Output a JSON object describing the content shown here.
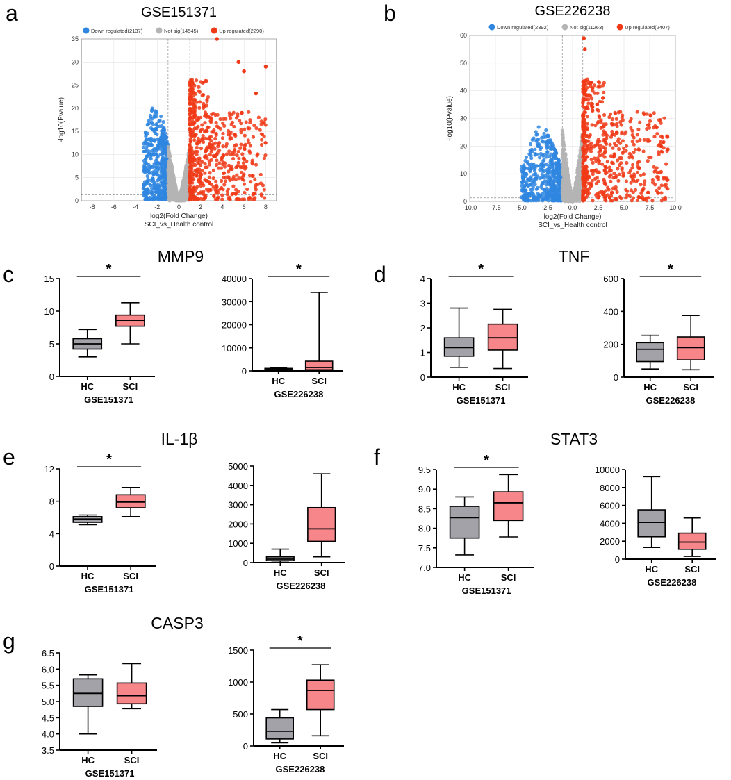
{
  "figure": {
    "panel_letters": [
      "a",
      "b",
      "c",
      "d",
      "e",
      "f",
      "g"
    ],
    "colors": {
      "down": "#2f86e0",
      "notsig": "#b4b4b4",
      "up": "#f03a17",
      "hc_box": "#a2a2a8",
      "sci_box": "#f6868a"
    }
  },
  "volcano_a": {
    "title": "GSE151371",
    "legend": [
      "Down regulated(2137)",
      "Not sig(14545)",
      "Up regulated(2290)"
    ],
    "xlabel": "log2(Fold Change)",
    "subtitle": "SCI_vs_Health control",
    "ylabel": "-log10(Pvalue)",
    "yticks": [
      "0",
      "5",
      "10",
      "15",
      "20",
      "25",
      "30",
      "35"
    ],
    "xticks": [
      "-8",
      "-6",
      "-4",
      "-2",
      "0",
      "2",
      "4",
      "6",
      "8"
    ]
  },
  "volcano_b": {
    "title": "GSE226238",
    "legend": [
      "Down regulated(2392)",
      "Not sig(11263)",
      "Up regulated(2407)"
    ],
    "xlabel": "log2(Fold Change)",
    "subtitle": "SCI_vs_Health control",
    "ylabel": "-log10(Pvalue)",
    "yticks": [
      "0",
      "10",
      "20",
      "30",
      "40",
      "50",
      "60"
    ],
    "xticks": [
      "-10.0",
      "-7.5",
      "-5.0",
      "-2.5",
      "0.0",
      "2.5",
      "5.0",
      "7.5",
      "10.0"
    ]
  },
  "gene_titles": {
    "c": "MMP9",
    "d": "TNF",
    "e": "IL-1β",
    "f": "STAT3",
    "g": "CASP3"
  },
  "chart_data": [
    {
      "id": "a",
      "type": "scatter",
      "title": "GSE151371",
      "xlabel": "log2(Fold Change)",
      "ylabel": "-log10(Pvalue)",
      "xlim": [
        -9,
        9
      ],
      "ylim": [
        0,
        35
      ],
      "series": [
        {
          "name": "Down regulated",
          "count": 2137,
          "x_range": [
            -3.3,
            -1.0
          ],
          "y_max": 20
        },
        {
          "name": "Not sig",
          "count": 14545,
          "x_range": [
            -1.0,
            1.0
          ],
          "y_max": 12
        },
        {
          "name": "Up regulated",
          "count": 2290,
          "x_range": [
            1.0,
            8.0
          ],
          "y_max": 35
        }
      ],
      "highlight_points": [
        [
          8.0,
          29.0
        ],
        [
          3.5,
          35.0
        ],
        [
          5.5,
          30.0
        ],
        [
          6.0,
          28.0
        ],
        [
          7.1,
          23.2
        ],
        [
          5.8,
          19.0
        ],
        [
          6.0,
          9.0
        ],
        [
          4.1,
          9.8
        ]
      ],
      "threshold_lines": {
        "x": [
          -1,
          1
        ],
        "y": 1.3
      }
    },
    {
      "id": "b",
      "type": "scatter",
      "title": "GSE226238",
      "xlabel": "log2(Fold Change)",
      "ylabel": "-log10(Pvalue)",
      "xlim": [
        -10,
        10
      ],
      "ylim": [
        0,
        60
      ],
      "series": [
        {
          "name": "Down regulated",
          "count": 2392,
          "x_range": [
            -5.0,
            -1.0
          ],
          "y_max": 27
        },
        {
          "name": "Not sig",
          "count": 11263,
          "x_range": [
            -1.0,
            1.0
          ],
          "y_max": 26
        },
        {
          "name": "Up regulated",
          "count": 2407,
          "x_range": [
            1.0,
            9.3
          ],
          "y_max": 59
        }
      ],
      "highlight_points": [
        [
          1.1,
          59.0
        ],
        [
          1.2,
          55.0
        ],
        [
          1.8,
          43.0
        ],
        [
          9.2,
          23.5
        ],
        [
          8.6,
          20.0
        ],
        [
          6.5,
          12.0
        ]
      ],
      "threshold_lines": {
        "x": [
          -1,
          1
        ],
        "y": 1.3
      }
    },
    {
      "id": "c1",
      "panel": "c",
      "type": "box",
      "dataset": "GSE151371",
      "gene": "MMP9",
      "significant": true,
      "ylim": [
        0,
        15
      ],
      "yticks": [
        0,
        5,
        10,
        15
      ],
      "groups": [
        {
          "name": "HC",
          "min": 3.0,
          "q1": 4.2,
          "median": 5.0,
          "q3": 5.8,
          "max": 7.2
        },
        {
          "name": "SCI",
          "min": 5.0,
          "q1": 7.7,
          "median": 8.6,
          "q3": 9.4,
          "max": 11.3
        }
      ]
    },
    {
      "id": "c2",
      "panel": "c",
      "type": "box",
      "dataset": "GSE226238",
      "gene": "MMP9",
      "significant": true,
      "ylim": [
        0,
        40000
      ],
      "yticks": [
        0,
        10000,
        20000,
        30000,
        40000
      ],
      "groups": [
        {
          "name": "HC",
          "min": 200,
          "q1": 400,
          "median": 700,
          "q3": 1100,
          "max": 1500
        },
        {
          "name": "SCI",
          "min": 100,
          "q1": 500,
          "median": 1500,
          "q3": 4200,
          "max": 34000
        }
      ]
    },
    {
      "id": "d1",
      "panel": "d",
      "type": "box",
      "dataset": "GSE151371",
      "gene": "TNF",
      "significant": true,
      "ylim": [
        0,
        4
      ],
      "yticks": [
        0,
        1,
        2,
        3,
        4
      ],
      "groups": [
        {
          "name": "HC",
          "min": 0.4,
          "q1": 0.85,
          "median": 1.2,
          "q3": 1.6,
          "max": 2.8
        },
        {
          "name": "SCI",
          "min": 0.35,
          "q1": 1.1,
          "median": 1.6,
          "q3": 2.15,
          "max": 2.75
        }
      ]
    },
    {
      "id": "d2",
      "panel": "d",
      "type": "box",
      "dataset": "GSE226238",
      "gene": "TNF",
      "significant": true,
      "ylim": [
        0,
        600
      ],
      "yticks": [
        0,
        200,
        400,
        600
      ],
      "groups": [
        {
          "name": "HC",
          "min": 50,
          "q1": 95,
          "median": 170,
          "q3": 210,
          "max": 255
        },
        {
          "name": "SCI",
          "min": 45,
          "q1": 105,
          "median": 180,
          "q3": 245,
          "max": 375
        }
      ]
    },
    {
      "id": "e1",
      "panel": "e",
      "type": "box",
      "dataset": "GSE151371",
      "gene": "IL-1β",
      "significant": true,
      "ylim": [
        0,
        12
      ],
      "yticks": [
        0,
        4,
        8,
        12
      ],
      "groups": [
        {
          "name": "HC",
          "min": 5.1,
          "q1": 5.4,
          "median": 5.8,
          "q3": 6.1,
          "max": 6.3
        },
        {
          "name": "SCI",
          "min": 6.1,
          "q1": 7.2,
          "median": 7.9,
          "q3": 8.8,
          "max": 9.7
        }
      ]
    },
    {
      "id": "e2",
      "panel": "e",
      "type": "box",
      "dataset": "GSE226238",
      "gene": "IL-1β",
      "significant": false,
      "ylim": [
        0,
        5000
      ],
      "yticks": [
        0,
        1000,
        2000,
        3000,
        4000,
        5000
      ],
      "groups": [
        {
          "name": "HC",
          "min": 20,
          "q1": 100,
          "median": 180,
          "q3": 300,
          "max": 700
        },
        {
          "name": "SCI",
          "min": 300,
          "q1": 1100,
          "median": 1750,
          "q3": 2850,
          "max": 4600
        }
      ]
    },
    {
      "id": "f1",
      "panel": "f",
      "type": "box",
      "dataset": "GSE151371",
      "gene": "STAT3",
      "significant": true,
      "ylim": [
        7.0,
        9.5
      ],
      "yticks": [
        7.0,
        7.5,
        8.0,
        8.5,
        9.0,
        9.5
      ],
      "groups": [
        {
          "name": "HC",
          "min": 7.32,
          "q1": 7.75,
          "median": 8.27,
          "q3": 8.56,
          "max": 8.8
        },
        {
          "name": "SCI",
          "min": 7.78,
          "q1": 8.2,
          "median": 8.65,
          "q3": 8.93,
          "max": 9.37
        }
      ]
    },
    {
      "id": "f2",
      "panel": "f",
      "type": "box",
      "dataset": "GSE226238",
      "gene": "STAT3",
      "significant": false,
      "ylim": [
        0,
        10000
      ],
      "yticks": [
        0,
        2000,
        4000,
        6000,
        8000,
        10000
      ],
      "groups": [
        {
          "name": "HC",
          "min": 1300,
          "q1": 2500,
          "median": 4100,
          "q3": 5500,
          "max": 9200
        },
        {
          "name": "SCI",
          "min": 300,
          "q1": 1100,
          "median": 1900,
          "q3": 2900,
          "max": 4600
        }
      ]
    },
    {
      "id": "g1",
      "panel": "g",
      "type": "box",
      "dataset": "GSE151371",
      "gene": "CASP3",
      "significant": false,
      "ylim": [
        3.5,
        6.5
      ],
      "yticks": [
        3.5,
        4.0,
        4.5,
        5.0,
        5.5,
        6.0,
        6.5
      ],
      "groups": [
        {
          "name": "HC",
          "min": 4.0,
          "q1": 4.85,
          "median": 5.25,
          "q3": 5.7,
          "max": 5.82
        },
        {
          "name": "SCI",
          "min": 4.78,
          "q1": 4.93,
          "median": 5.18,
          "q3": 5.57,
          "max": 6.17
        }
      ]
    },
    {
      "id": "g2",
      "panel": "g",
      "type": "box",
      "dataset": "GSE226238",
      "gene": "CASP3",
      "significant": true,
      "ylim": [
        0,
        1500
      ],
      "yticks": [
        0,
        500,
        1000,
        1500
      ],
      "groups": [
        {
          "name": "HC",
          "min": 50,
          "q1": 110,
          "median": 230,
          "q3": 440,
          "max": 570
        },
        {
          "name": "SCI",
          "min": 160,
          "q1": 570,
          "median": 870,
          "q3": 1030,
          "max": 1270
        }
      ]
    }
  ]
}
